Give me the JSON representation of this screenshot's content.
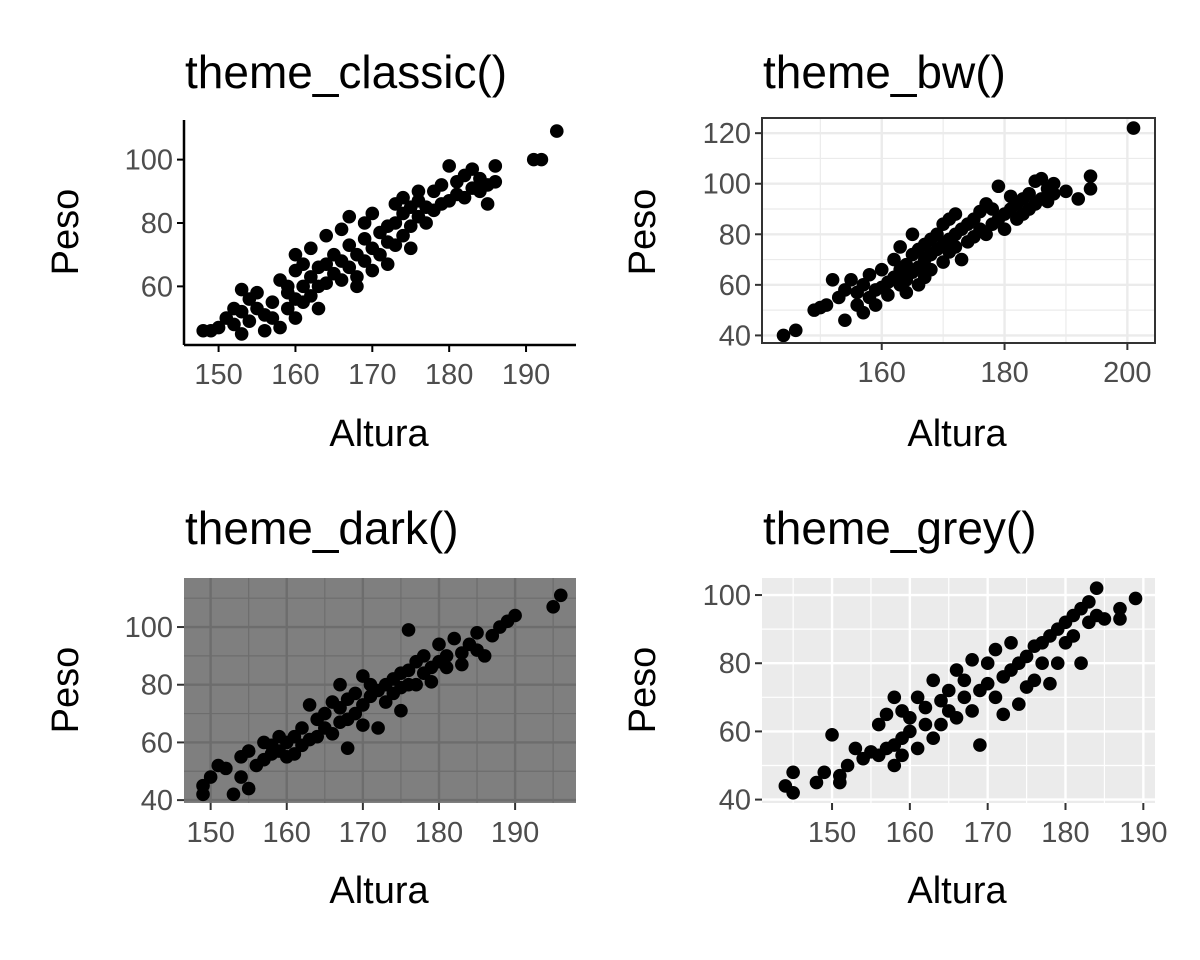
{
  "chart_data": [
    {
      "type": "scatter",
      "title": "theme_classic()",
      "theme": "classic",
      "xlabel": "Altura",
      "ylabel": "Peso",
      "xlim": [
        145.5,
        196.5
      ],
      "ylim": [
        41.5,
        112.5
      ],
      "xticks": [
        150,
        160,
        170,
        180,
        190
      ],
      "yticks": [
        60,
        80,
        100
      ],
      "grid": false,
      "point_color": "#000000",
      "points": [
        [
          148,
          46
        ],
        [
          149,
          46
        ],
        [
          150,
          47
        ],
        [
          151,
          50
        ],
        [
          152,
          48
        ],
        [
          152,
          53
        ],
        [
          153,
          45
        ],
        [
          153,
          52
        ],
        [
          153,
          59
        ],
        [
          154,
          49
        ],
        [
          154,
          56
        ],
        [
          155,
          58
        ],
        [
          155,
          53
        ],
        [
          156,
          51
        ],
        [
          156,
          46
        ],
        [
          157,
          50
        ],
        [
          157,
          55
        ],
        [
          158,
          62
        ],
        [
          158,
          47
        ],
        [
          159,
          53
        ],
        [
          159,
          58
        ],
        [
          159,
          60
        ],
        [
          160,
          50
        ],
        [
          160,
          56
        ],
        [
          160,
          65
        ],
        [
          160,
          70
        ],
        [
          161,
          55
        ],
        [
          161,
          60
        ],
        [
          161,
          67
        ],
        [
          162,
          57
        ],
        [
          162,
          63
        ],
        [
          162,
          72
        ],
        [
          163,
          60
        ],
        [
          163,
          66
        ],
        [
          163,
          53
        ],
        [
          164,
          61
        ],
        [
          164,
          67
        ],
        [
          164,
          76
        ],
        [
          165,
          64
        ],
        [
          165,
          70
        ],
        [
          166,
          62
        ],
        [
          166,
          68
        ],
        [
          166,
          78
        ],
        [
          167,
          66
        ],
        [
          167,
          73
        ],
        [
          167,
          82
        ],
        [
          168,
          63
        ],
        [
          168,
          70
        ],
        [
          168,
          60
        ],
        [
          169,
          68
        ],
        [
          169,
          75
        ],
        [
          169,
          80
        ],
        [
          170,
          65
        ],
        [
          170,
          72
        ],
        [
          170,
          83
        ],
        [
          171,
          70
        ],
        [
          171,
          77
        ],
        [
          172,
          74
        ],
        [
          172,
          67
        ],
        [
          172,
          79
        ],
        [
          173,
          80
        ],
        [
          173,
          73
        ],
        [
          173,
          86
        ],
        [
          174,
          76
        ],
        [
          174,
          83
        ],
        [
          174,
          88
        ],
        [
          175,
          79
        ],
        [
          175,
          85
        ],
        [
          175,
          72
        ],
        [
          176,
          82
        ],
        [
          176,
          87
        ],
        [
          176,
          90
        ],
        [
          177,
          80
        ],
        [
          177,
          85
        ],
        [
          178,
          84
        ],
        [
          178,
          90
        ],
        [
          179,
          86
        ],
        [
          179,
          92
        ],
        [
          180,
          87
        ],
        [
          180,
          98
        ],
        [
          181,
          89
        ],
        [
          181,
          93
        ],
        [
          182,
          88
        ],
        [
          182,
          95
        ],
        [
          183,
          91
        ],
        [
          183,
          97
        ],
        [
          184,
          90
        ],
        [
          184,
          94
        ],
        [
          185,
          86
        ],
        [
          185,
          92
        ],
        [
          186,
          93
        ],
        [
          186,
          98
        ],
        [
          191,
          100
        ],
        [
          192,
          100
        ],
        [
          194,
          109
        ]
      ]
    },
    {
      "type": "scatter",
      "title": "theme_bw()",
      "theme": "bw",
      "xlabel": "Altura",
      "ylabel": "Peso",
      "xlim": [
        140.5,
        204.5
      ],
      "ylim": [
        37,
        126
      ],
      "xticks": [
        160,
        180,
        200
      ],
      "yticks": [
        40,
        60,
        80,
        100,
        120
      ],
      "grid": true,
      "point_color": "#000000",
      "points": [
        [
          144,
          40
        ],
        [
          146,
          42
        ],
        [
          149,
          50
        ],
        [
          150,
          51
        ],
        [
          151,
          52
        ],
        [
          152,
          62
        ],
        [
          153,
          55
        ],
        [
          154,
          46
        ],
        [
          154,
          58
        ],
        [
          155,
          62
        ],
        [
          156,
          52
        ],
        [
          156,
          57
        ],
        [
          157,
          49
        ],
        [
          157,
          60
        ],
        [
          158,
          55
        ],
        [
          158,
          64
        ],
        [
          159,
          58
        ],
        [
          159,
          52
        ],
        [
          160,
          59
        ],
        [
          160,
          66
        ],
        [
          161,
          61
        ],
        [
          161,
          56
        ],
        [
          162,
          63
        ],
        [
          162,
          70
        ],
        [
          163,
          60
        ],
        [
          163,
          66
        ],
        [
          163,
          75
        ],
        [
          164,
          62
        ],
        [
          164,
          68
        ],
        [
          164,
          57
        ],
        [
          165,
          65
        ],
        [
          165,
          72
        ],
        [
          165,
          80
        ],
        [
          166,
          67
        ],
        [
          166,
          74
        ],
        [
          166,
          60
        ],
        [
          167,
          70
        ],
        [
          167,
          76
        ],
        [
          167,
          63
        ],
        [
          168,
          72
        ],
        [
          168,
          78
        ],
        [
          168,
          66
        ],
        [
          169,
          74
        ],
        [
          169,
          80
        ],
        [
          170,
          69
        ],
        [
          170,
          76
        ],
        [
          170,
          84
        ],
        [
          171,
          78
        ],
        [
          171,
          73
        ],
        [
          171,
          86
        ],
        [
          172,
          80
        ],
        [
          172,
          75
        ],
        [
          172,
          88
        ],
        [
          173,
          82
        ],
        [
          173,
          70
        ],
        [
          174,
          84
        ],
        [
          174,
          77
        ],
        [
          175,
          79
        ],
        [
          175,
          86
        ],
        [
          176,
          82
        ],
        [
          176,
          89
        ],
        [
          177,
          80
        ],
        [
          177,
          92
        ],
        [
          178,
          84
        ],
        [
          178,
          90
        ],
        [
          179,
          86
        ],
        [
          179,
          99
        ],
        [
          180,
          88
        ],
        [
          180,
          82
        ],
        [
          181,
          90
        ],
        [
          181,
          95
        ],
        [
          182,
          86
        ],
        [
          182,
          92
        ],
        [
          183,
          94
        ],
        [
          183,
          88
        ],
        [
          184,
          96
        ],
        [
          184,
          90
        ],
        [
          185,
          92
        ],
        [
          185,
          101
        ],
        [
          186,
          94
        ],
        [
          186,
          102
        ],
        [
          187,
          98
        ],
        [
          187,
          93
        ],
        [
          188,
          96
        ],
        [
          188,
          100
        ],
        [
          190,
          97
        ],
        [
          192,
          94
        ],
        [
          194,
          98
        ],
        [
          194,
          103
        ],
        [
          201,
          122
        ]
      ]
    },
    {
      "type": "scatter",
      "title": "theme_dark()",
      "theme": "dark",
      "xlabel": "Altura",
      "ylabel": "Peso",
      "xlim": [
        146.5,
        198
      ],
      "ylim": [
        39,
        117
      ],
      "xticks": [
        150,
        160,
        170,
        180,
        190
      ],
      "yticks": [
        40,
        60,
        80,
        100
      ],
      "grid": true,
      "point_color": "#000000",
      "points": [
        [
          149,
          42
        ],
        [
          149,
          45
        ],
        [
          150,
          48
        ],
        [
          151,
          52
        ],
        [
          152,
          51
        ],
        [
          153,
          42
        ],
        [
          154,
          48
        ],
        [
          155,
          44
        ],
        [
          154,
          55
        ],
        [
          155,
          57
        ],
        [
          156,
          52
        ],
        [
          157,
          54
        ],
        [
          157,
          60
        ],
        [
          158,
          56
        ],
        [
          158,
          59
        ],
        [
          159,
          57
        ],
        [
          159,
          62
        ],
        [
          160,
          55
        ],
        [
          160,
          60
        ],
        [
          161,
          56
        ],
        [
          161,
          62
        ],
        [
          162,
          59
        ],
        [
          162,
          65
        ],
        [
          163,
          61
        ],
        [
          163,
          73
        ],
        [
          164,
          62
        ],
        [
          164,
          68
        ],
        [
          165,
          65
        ],
        [
          165,
          70
        ],
        [
          166,
          63
        ],
        [
          166,
          74
        ],
        [
          167,
          67
        ],
        [
          167,
          72
        ],
        [
          167,
          80
        ],
        [
          168,
          68
        ],
        [
          168,
          75
        ],
        [
          168,
          58
        ],
        [
          169,
          70
        ],
        [
          169,
          77
        ],
        [
          170,
          66
        ],
        [
          170,
          73
        ],
        [
          170,
          83
        ],
        [
          171,
          76
        ],
        [
          171,
          80
        ],
        [
          172,
          65
        ],
        [
          172,
          78
        ],
        [
          173,
          80
        ],
        [
          173,
          74
        ],
        [
          174,
          82
        ],
        [
          174,
          77
        ],
        [
          175,
          79
        ],
        [
          175,
          84
        ],
        [
          175,
          71
        ],
        [
          176,
          85
        ],
        [
          176,
          80
        ],
        [
          176,
          99
        ],
        [
          177,
          80
        ],
        [
          177,
          88
        ],
        [
          178,
          84
        ],
        [
          178,
          90
        ],
        [
          179,
          86
        ],
        [
          179,
          81
        ],
        [
          180,
          88
        ],
        [
          180,
          94
        ],
        [
          181,
          90
        ],
        [
          181,
          86
        ],
        [
          182,
          96
        ],
        [
          183,
          91
        ],
        [
          183,
          87
        ],
        [
          184,
          94
        ],
        [
          185,
          92
        ],
        [
          185,
          98
        ],
        [
          186,
          90
        ],
        [
          187,
          97
        ],
        [
          188,
          100
        ],
        [
          189,
          102
        ],
        [
          190,
          104
        ],
        [
          195,
          107
        ],
        [
          196,
          111
        ]
      ]
    },
    {
      "type": "scatter",
      "title": "theme_grey()",
      "theme": "grey",
      "xlabel": "Altura",
      "ylabel": "Peso",
      "xlim": [
        141,
        191.5
      ],
      "ylim": [
        39,
        105
      ],
      "xticks": [
        150,
        160,
        170,
        180,
        190
      ],
      "yticks": [
        40,
        60,
        80,
        100
      ],
      "grid": true,
      "point_color": "#000000",
      "points": [
        [
          144,
          44
        ],
        [
          145,
          42
        ],
        [
          145,
          48
        ],
        [
          148,
          45
        ],
        [
          149,
          48
        ],
        [
          150,
          59
        ],
        [
          151,
          45
        ],
        [
          151,
          47
        ],
        [
          152,
          50
        ],
        [
          153,
          55
        ],
        [
          154,
          52
        ],
        [
          155,
          54
        ],
        [
          156,
          53
        ],
        [
          156,
          62
        ],
        [
          157,
          55
        ],
        [
          157,
          65
        ],
        [
          158,
          50
        ],
        [
          158,
          56
        ],
        [
          158,
          70
        ],
        [
          159,
          53
        ],
        [
          159,
          58
        ],
        [
          159,
          66
        ],
        [
          160,
          60
        ],
        [
          160,
          64
        ],
        [
          161,
          55
        ],
        [
          161,
          70
        ],
        [
          162,
          62
        ],
        [
          162,
          67
        ],
        [
          163,
          58
        ],
        [
          163,
          75
        ],
        [
          164,
          62
        ],
        [
          164,
          69
        ],
        [
          165,
          66
        ],
        [
          165,
          72
        ],
        [
          166,
          64
        ],
        [
          166,
          78
        ],
        [
          167,
          70
        ],
        [
          167,
          75
        ],
        [
          168,
          66
        ],
        [
          168,
          81
        ],
        [
          169,
          72
        ],
        [
          169,
          56
        ],
        [
          170,
          74
        ],
        [
          170,
          80
        ],
        [
          171,
          70
        ],
        [
          171,
          84
        ],
        [
          172,
          76
        ],
        [
          172,
          65
        ],
        [
          173,
          78
        ],
        [
          173,
          86
        ],
        [
          174,
          80
        ],
        [
          174,
          68
        ],
        [
          175,
          82
        ],
        [
          175,
          73
        ],
        [
          176,
          85
        ],
        [
          176,
          75
        ],
        [
          177,
          86
        ],
        [
          177,
          80
        ],
        [
          178,
          88
        ],
        [
          178,
          74
        ],
        [
          179,
          90
        ],
        [
          179,
          80
        ],
        [
          180,
          92
        ],
        [
          180,
          86
        ],
        [
          181,
          94
        ],
        [
          181,
          88
        ],
        [
          182,
          96
        ],
        [
          182,
          80
        ],
        [
          183,
          92
        ],
        [
          183,
          98
        ],
        [
          184,
          94
        ],
        [
          184,
          102
        ],
        [
          185,
          93
        ],
        [
          187,
          93
        ],
        [
          187,
          96
        ],
        [
          189,
          99
        ]
      ]
    }
  ]
}
